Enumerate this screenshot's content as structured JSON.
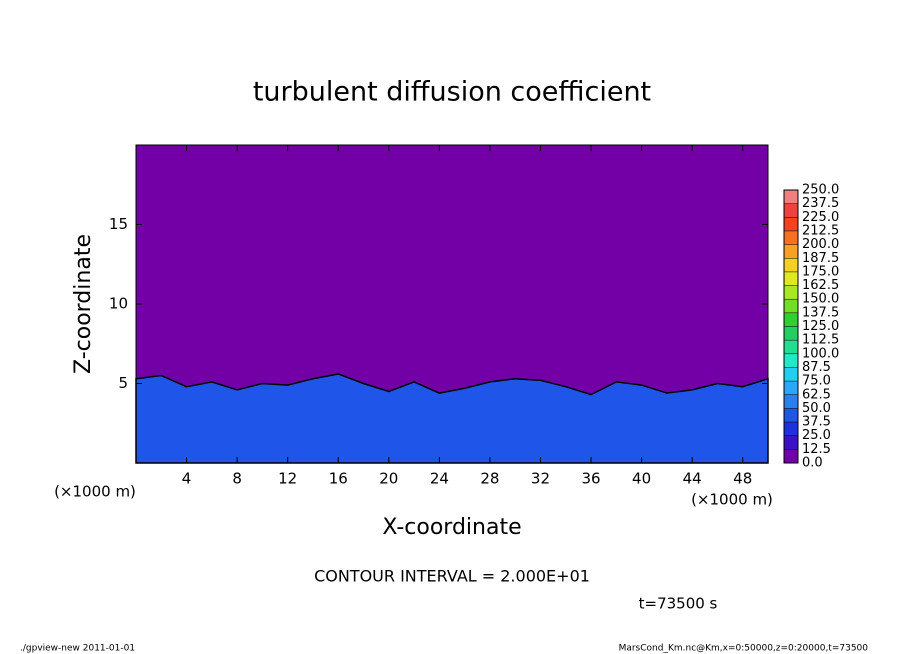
{
  "chart_data": {
    "type": "contour",
    "title": "turbulent diffusion coefficient",
    "x_label": "X-coordinate",
    "y_label": "Z-coordinate",
    "x_unit": "(×1000 m)",
    "x_unit_right": "(×1000 m)",
    "contour_note": "CONTOUR INTERVAL = 2.000E+01",
    "time_note": "t=73500 s",
    "footer_left": "./gpview-new  2011-01-01",
    "footer_right": "MarsCond_Km.nc@Km,x=0:50000,z=0:20000,t=73500",
    "xlim": [
      0,
      50
    ],
    "ylim": [
      0,
      20
    ],
    "xticks": [
      4,
      8,
      12,
      16,
      20,
      24,
      28,
      32,
      36,
      40,
      44,
      48
    ],
    "yticks": [
      5,
      10,
      15
    ],
    "background_color": "#7200a6",
    "series": [
      {
        "color": "#1f55e8",
        "x": [
          0,
          2,
          4,
          6,
          8,
          10,
          12,
          14,
          16,
          18,
          20,
          22,
          24,
          26,
          28,
          30,
          32,
          34,
          36,
          38,
          40,
          42,
          44,
          46,
          48,
          50
        ],
        "values": [
          5.3,
          5.5,
          4.8,
          5.1,
          4.6,
          5.0,
          4.9,
          5.3,
          5.6,
          5.0,
          4.5,
          5.1,
          4.4,
          4.7,
          5.1,
          5.3,
          5.2,
          4.8,
          4.3,
          5.1,
          4.9,
          4.4,
          4.6,
          5.0,
          4.8,
          5.3
        ]
      }
    ],
    "colorbar": {
      "levels": [
        {
          "value": 0,
          "label": "0.0"
        },
        {
          "value": 12.5,
          "label": "12.5"
        },
        {
          "value": 25,
          "label": "25.0"
        },
        {
          "value": 37.5,
          "label": "37.5"
        },
        {
          "value": 50,
          "label": "50.0"
        },
        {
          "value": 62.5,
          "label": "62.5"
        },
        {
          "value": 75,
          "label": "75.0"
        },
        {
          "value": 87.5,
          "label": "87.5"
        },
        {
          "value": 100,
          "label": "100.0"
        },
        {
          "value": 112.5,
          "label": "112.5"
        },
        {
          "value": 125,
          "label": "125.0"
        },
        {
          "value": 137.5,
          "label": "137.5"
        },
        {
          "value": 150,
          "label": "150.0"
        },
        {
          "value": 162.5,
          "label": "162.5"
        },
        {
          "value": 175,
          "label": "175.0"
        },
        {
          "value": 187.5,
          "label": "187.5"
        },
        {
          "value": 200,
          "label": "200.0"
        },
        {
          "value": 212.5,
          "label": "212.5"
        },
        {
          "value": 225,
          "label": "225.0"
        },
        {
          "value": 237.5,
          "label": "237.5"
        },
        {
          "value": 250,
          "label": "250.0"
        }
      ],
      "colors": [
        "#7200a6",
        "#3a10c8",
        "#1f30e0",
        "#1f55e8",
        "#2a80f0",
        "#28a8f8",
        "#20d0f0",
        "#20e8c8",
        "#20e090",
        "#20d060",
        "#30d030",
        "#70e020",
        "#a8e820",
        "#e0e820",
        "#f8d020",
        "#f8a020",
        "#f87020",
        "#f84020",
        "#f04040",
        "#f08080"
      ]
    }
  }
}
